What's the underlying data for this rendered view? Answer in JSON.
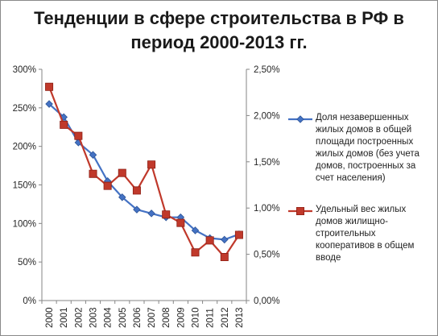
{
  "chart_data": {
    "type": "line",
    "title": [
      "Тенденции в сфере строительства в РФ в",
      "период 2000-2013 гг."
    ],
    "categories": [
      "2000",
      "2001",
      "2002",
      "2003",
      "2004",
      "2005",
      "2006",
      "2007",
      "2008",
      "2009",
      "2010",
      "2011",
      "2012",
      "2013"
    ],
    "y_left": {
      "ylim": [
        0,
        300
      ],
      "ticks": [
        0,
        50,
        100,
        150,
        200,
        250,
        300
      ],
      "tick_labels": [
        "0%",
        "50%",
        "100%",
        "150%",
        "200%",
        "250%",
        "300%"
      ]
    },
    "y_right": {
      "ylim": [
        0,
        2.5
      ],
      "ticks": [
        0,
        0.5,
        1.0,
        1.5,
        2.0,
        2.5
      ],
      "tick_labels": [
        "0,00%",
        "0,50%",
        "1,00%",
        "1,50%",
        "2,00%",
        "2,50%"
      ]
    },
    "series": [
      {
        "name": "Доля незавершенных жилых домов в общей площади построенных жилых домов (без учета домов, построенных за счет населения)",
        "name_lines": [
          "Доля незавершенных",
          "жилых домов в общей",
          "площади построенных",
          "жилых домов (без учета",
          "домов, построенных за",
          "счет населения)"
        ],
        "axis": "left",
        "color": "#4472C4",
        "marker": "diamond",
        "values": [
          255,
          238,
          205,
          189,
          155,
          134,
          118,
          113,
          108,
          108,
          91,
          81,
          79,
          86
        ]
      },
      {
        "name": "Удельный вес жилых домов жилищно-строительных кооперативов в общем вводе",
        "name_lines": [
          "Удельный вес жилых",
          "домов жилищно-",
          "строительных",
          "кооперативов  в общем",
          "вводе"
        ],
        "axis": "right",
        "color": "#C0392B",
        "marker": "square",
        "values": [
          2.31,
          1.9,
          1.78,
          1.37,
          1.24,
          1.38,
          1.19,
          1.47,
          0.93,
          0.84,
          0.52,
          0.65,
          0.47,
          0.71
        ]
      }
    ],
    "grid": false,
    "legend_position": "right"
  }
}
